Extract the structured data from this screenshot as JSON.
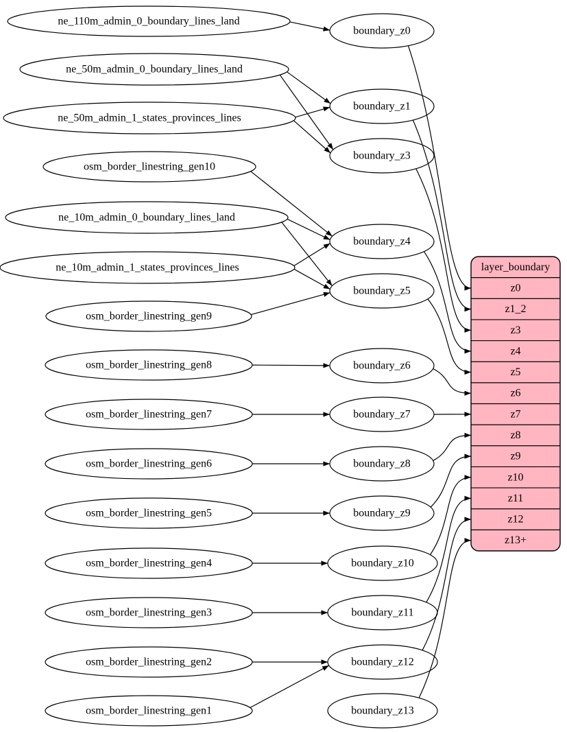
{
  "colors": {
    "background": "#ffffff",
    "stroke": "#000000",
    "table_fill": "#ffb6c1"
  },
  "source_nodes": [
    {
      "id": "ne_110m_admin_0_boundary_lines_land",
      "label": "ne_110m_admin_0_boundary_lines_land"
    },
    {
      "id": "ne_50m_admin_0_boundary_lines_land",
      "label": "ne_50m_admin_0_boundary_lines_land"
    },
    {
      "id": "ne_50m_admin_1_states_provinces_lines",
      "label": "ne_50m_admin_1_states_provinces_lines"
    },
    {
      "id": "osm_border_linestring_gen10",
      "label": "osm_border_linestring_gen10"
    },
    {
      "id": "ne_10m_admin_0_boundary_lines_land",
      "label": "ne_10m_admin_0_boundary_lines_land"
    },
    {
      "id": "ne_10m_admin_1_states_provinces_lines",
      "label": "ne_10m_admin_1_states_provinces_lines"
    },
    {
      "id": "osm_border_linestring_gen9",
      "label": "osm_border_linestring_gen9"
    },
    {
      "id": "osm_border_linestring_gen8",
      "label": "osm_border_linestring_gen8"
    },
    {
      "id": "osm_border_linestring_gen7",
      "label": "osm_border_linestring_gen7"
    },
    {
      "id": "osm_border_linestring_gen6",
      "label": "osm_border_linestring_gen6"
    },
    {
      "id": "osm_border_linestring_gen5",
      "label": "osm_border_linestring_gen5"
    },
    {
      "id": "osm_border_linestring_gen4",
      "label": "osm_border_linestring_gen4"
    },
    {
      "id": "osm_border_linestring_gen3",
      "label": "osm_border_linestring_gen3"
    },
    {
      "id": "osm_border_linestring_gen2",
      "label": "osm_border_linestring_gen2"
    },
    {
      "id": "osm_border_linestring_gen1",
      "label": "osm_border_linestring_gen1"
    }
  ],
  "transform_nodes": [
    {
      "id": "boundary_z0",
      "label": "boundary_z0"
    },
    {
      "id": "boundary_z1",
      "label": "boundary_z1"
    },
    {
      "id": "boundary_z3",
      "label": "boundary_z3"
    },
    {
      "id": "boundary_z4",
      "label": "boundary_z4"
    },
    {
      "id": "boundary_z5",
      "label": "boundary_z5"
    },
    {
      "id": "boundary_z6",
      "label": "boundary_z6"
    },
    {
      "id": "boundary_z7",
      "label": "boundary_z7"
    },
    {
      "id": "boundary_z8",
      "label": "boundary_z8"
    },
    {
      "id": "boundary_z9",
      "label": "boundary_z9"
    },
    {
      "id": "boundary_z10",
      "label": "boundary_z10"
    },
    {
      "id": "boundary_z11",
      "label": "boundary_z11"
    },
    {
      "id": "boundary_z12",
      "label": "boundary_z12"
    },
    {
      "id": "boundary_z13",
      "label": "boundary_z13"
    }
  ],
  "layer_table": {
    "title": "layer_boundary",
    "rows": [
      "z0",
      "z1_2",
      "z3",
      "z4",
      "z5",
      "z6",
      "z7",
      "z8",
      "z9",
      "z10",
      "z11",
      "z12",
      "z13+"
    ]
  },
  "edges": [
    {
      "from": "ne_110m_admin_0_boundary_lines_land",
      "to": "boundary_z0"
    },
    {
      "from": "ne_50m_admin_0_boundary_lines_land",
      "to": "boundary_z1"
    },
    {
      "from": "ne_50m_admin_0_boundary_lines_land",
      "to": "boundary_z3"
    },
    {
      "from": "ne_50m_admin_1_states_provinces_lines",
      "to": "boundary_z1"
    },
    {
      "from": "ne_50m_admin_1_states_provinces_lines",
      "to": "boundary_z3"
    },
    {
      "from": "osm_border_linestring_gen10",
      "to": "boundary_z4"
    },
    {
      "from": "ne_10m_admin_0_boundary_lines_land",
      "to": "boundary_z4"
    },
    {
      "from": "ne_10m_admin_0_boundary_lines_land",
      "to": "boundary_z5"
    },
    {
      "from": "ne_10m_admin_1_states_provinces_lines",
      "to": "boundary_z4"
    },
    {
      "from": "ne_10m_admin_1_states_provinces_lines",
      "to": "boundary_z5"
    },
    {
      "from": "osm_border_linestring_gen9",
      "to": "boundary_z5"
    },
    {
      "from": "osm_border_linestring_gen8",
      "to": "boundary_z6"
    },
    {
      "from": "osm_border_linestring_gen7",
      "to": "boundary_z7"
    },
    {
      "from": "osm_border_linestring_gen6",
      "to": "boundary_z8"
    },
    {
      "from": "osm_border_linestring_gen5",
      "to": "boundary_z9"
    },
    {
      "from": "osm_border_linestring_gen4",
      "to": "boundary_z10"
    },
    {
      "from": "osm_border_linestring_gen3",
      "to": "boundary_z11"
    },
    {
      "from": "osm_border_linestring_gen2",
      "to": "boundary_z12"
    },
    {
      "from": "osm_border_linestring_gen1",
      "to": "boundary_z12"
    },
    {
      "from": "boundary_z0",
      "to": "row:z0"
    },
    {
      "from": "boundary_z1",
      "to": "row:z1_2"
    },
    {
      "from": "boundary_z3",
      "to": "row:z3"
    },
    {
      "from": "boundary_z4",
      "to": "row:z4"
    },
    {
      "from": "boundary_z5",
      "to": "row:z5"
    },
    {
      "from": "boundary_z6",
      "to": "row:z6"
    },
    {
      "from": "boundary_z7",
      "to": "row:z7"
    },
    {
      "from": "boundary_z8",
      "to": "row:z8"
    },
    {
      "from": "boundary_z9",
      "to": "row:z9"
    },
    {
      "from": "boundary_z10",
      "to": "row:z10"
    },
    {
      "from": "boundary_z11",
      "to": "row:z11"
    },
    {
      "from": "boundary_z12",
      "to": "row:z12"
    },
    {
      "from": "boundary_z13",
      "to": "row:z13+"
    }
  ]
}
